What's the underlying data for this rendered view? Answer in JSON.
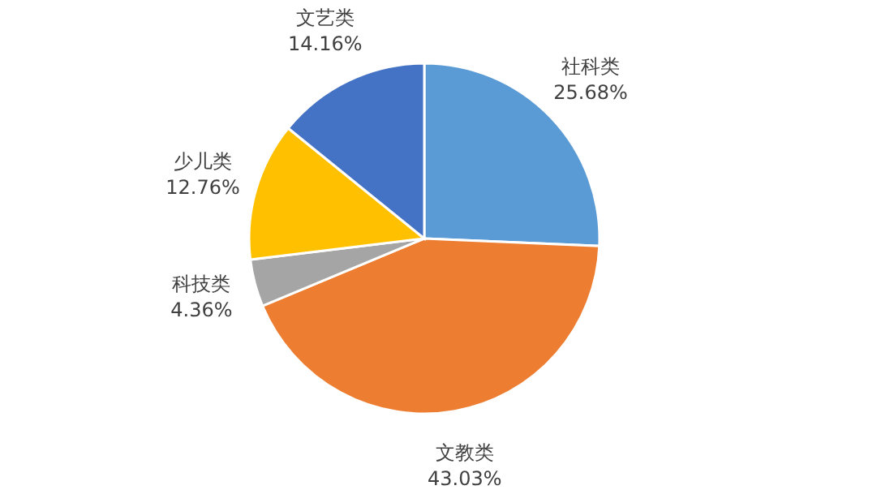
{
  "chart_data": {
    "type": "pie",
    "categories": [
      "社科类",
      "文教类",
      "科技类",
      "少儿类",
      "文艺类"
    ],
    "values": [
      25.68,
      43.03,
      4.36,
      12.76,
      14.16
    ],
    "value_labels": [
      "25.68%",
      "43.03%",
      "4.36%",
      "12.76%",
      "14.16%"
    ],
    "colors": [
      "#5b9bd5",
      "#ed7d31",
      "#a5a5a5",
      "#ffc000",
      "#4472c4"
    ],
    "legend": false
  }
}
